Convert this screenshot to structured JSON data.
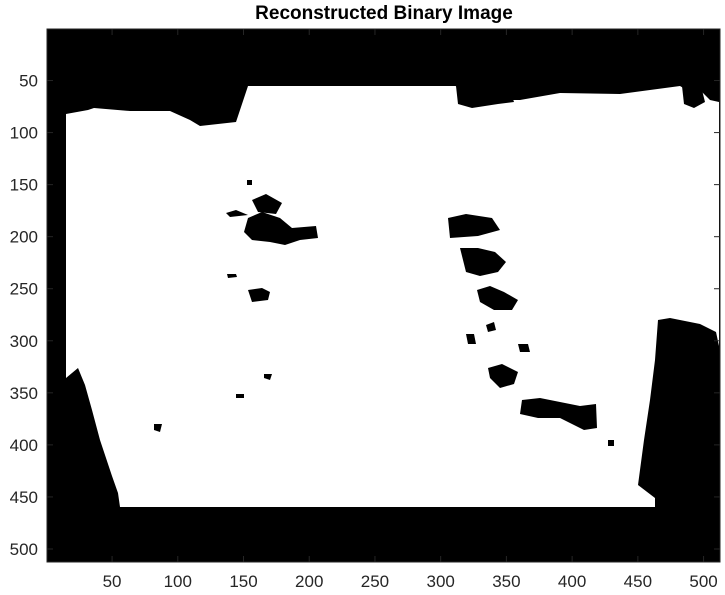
{
  "figure": {
    "title": "Reconstructed Binary Image",
    "background_color": "#ffffff",
    "axes_color": "#262626",
    "image_foreground_color": "#ffffff",
    "image_background_color": "#000000"
  },
  "axes": {
    "x_range": [
      1,
      512
    ],
    "y_range": [
      1,
      512
    ],
    "y_direction": "reversed",
    "x_ticks": [
      {
        "value": 50,
        "label": "50"
      },
      {
        "value": 100,
        "label": "100"
      },
      {
        "value": 150,
        "label": "150"
      },
      {
        "value": 200,
        "label": "200"
      },
      {
        "value": 250,
        "label": "250"
      },
      {
        "value": 300,
        "label": "300"
      },
      {
        "value": 350,
        "label": "350"
      },
      {
        "value": 400,
        "label": "400"
      },
      {
        "value": 450,
        "label": "450"
      },
      {
        "value": 500,
        "label": "500"
      }
    ],
    "y_ticks": [
      {
        "value": 50,
        "label": "50"
      },
      {
        "value": 100,
        "label": "100"
      },
      {
        "value": 150,
        "label": "150"
      },
      {
        "value": 200,
        "label": "200"
      },
      {
        "value": 250,
        "label": "250"
      },
      {
        "value": 300,
        "label": "300"
      },
      {
        "value": 350,
        "label": "350"
      },
      {
        "value": 400,
        "label": "400"
      },
      {
        "value": 450,
        "label": "450"
      },
      {
        "value": 500,
        "label": "500"
      }
    ]
  }
}
